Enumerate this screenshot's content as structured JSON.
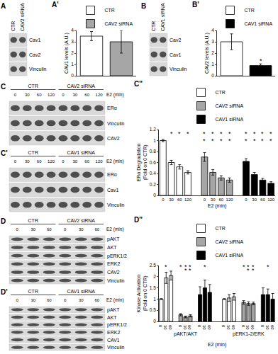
{
  "blots": [
    {
      "panel": "A",
      "lanes": [
        "CTR",
        "CAV2 siRNA"
      ],
      "rows": [
        "Cav1",
        "Cav2",
        "Vinculin"
      ]
    },
    {
      "panel": "B",
      "lanes": [
        "CTR",
        "CAV1 siRNA"
      ],
      "rows": [
        "Cav2",
        "Cav1",
        "Vinculin"
      ]
    },
    {
      "panel": "C",
      "groups": [
        "CTR",
        "CAV2 siRNA"
      ],
      "lanes": [
        "0",
        "30",
        "60",
        "120",
        "0",
        "30",
        "60",
        "120"
      ],
      "unit": "E2 (min)",
      "rows": [
        "ERα",
        "Vinculin",
        "CAV2"
      ]
    },
    {
      "panel": "C'",
      "groups": [
        "CTR",
        "CAV1 siRNA"
      ],
      "lanes": [
        "0",
        "30",
        "60",
        "120",
        "0",
        "30",
        "60",
        "120"
      ],
      "unit": "E2 (min)",
      "rows": [
        "ERα",
        "Cav1",
        "Vinculin"
      ]
    },
    {
      "panel": "D",
      "groups": [
        "CTR",
        "CAV2 siRNA"
      ],
      "lanes": [
        "0",
        "30",
        "60",
        "0",
        "30",
        "60"
      ],
      "unit": "E2 (min)",
      "rows": [
        "pAKT",
        "AKT",
        "pERK1/2",
        "ERK2",
        "CAV2",
        "Vinculin"
      ]
    },
    {
      "panel": "D'",
      "groups": [
        "CTR",
        "CAV1 siRNA"
      ],
      "lanes": [
        "0",
        "30",
        "60",
        "0",
        "30",
        "60"
      ],
      "unit": "E2 (min)",
      "rows": [
        "pAKT",
        "AKT",
        "pERK1/2",
        "ERK2",
        "CAV1",
        "Vinculin"
      ]
    }
  ],
  "chart_data": [
    {
      "panel": "A'",
      "type": "bar",
      "ylabel": "CAV1 levels (A.U.)",
      "categories": [
        null,
        null
      ],
      "series": [
        {
          "name": "CTR",
          "color": "#ffffff",
          "values": [
            3.5,
            null
          ],
          "errors": [
            0.4,
            null
          ]
        },
        {
          "name": "CAV2 siRNA",
          "color": "#a6a6a6",
          "values": [
            null,
            3.0
          ],
          "errors": [
            null,
            1.0
          ]
        }
      ],
      "ylim": [
        0,
        4
      ],
      "yticks": [
        0,
        1,
        2,
        3,
        4
      ],
      "legend": "top",
      "tick_labels": "y",
      "annotations": []
    },
    {
      "panel": "B'",
      "type": "bar",
      "ylabel": "CAV2 levels (A.U.)",
      "categories": [
        null,
        null
      ],
      "series": [
        {
          "name": "CTR",
          "color": "#ffffff",
          "values": [
            3.0,
            null
          ],
          "errors": [
            0.7,
            null
          ]
        },
        {
          "name": "CAV1 siRNA",
          "color": "#000000",
          "values": [
            null,
            0.9
          ],
          "errors": [
            null,
            0.15
          ]
        }
      ],
      "ylim": [
        0,
        4
      ],
      "yticks": [
        0,
        1,
        2,
        3,
        4
      ],
      "legend": "top",
      "tick_labels": "y",
      "annotations": [
        {
          "index": 1,
          "y": 1.3,
          "text": "*"
        }
      ]
    },
    {
      "panel": "C''",
      "type": "bar",
      "ylabel": "ERα Degradation\n(Fold on 0 CTR)",
      "xlabel": "E2 (min)",
      "categories": [
        "0",
        "30",
        "60",
        "120",
        null,
        "0",
        "30",
        "60",
        "120",
        null,
        "0",
        "30",
        "60",
        "120"
      ],
      "series": [
        {
          "name": "CTR",
          "color": "#ffffff",
          "values": [
            1.0,
            0.6,
            0.52,
            0.42,
            null,
            null,
            null,
            null,
            null,
            null,
            null,
            null,
            null,
            null
          ],
          "errors": [
            0.02,
            0.04,
            0.04,
            0.03,
            null,
            null,
            null,
            null,
            null,
            null,
            null,
            null,
            null,
            null
          ]
        },
        {
          "name": "CAV2 siRNA",
          "color": "#a6a6a6",
          "values": [
            null,
            null,
            null,
            null,
            null,
            0.7,
            0.42,
            0.32,
            0.28,
            null,
            null,
            null,
            null,
            null
          ],
          "errors": [
            null,
            null,
            null,
            null,
            null,
            0.08,
            0.05,
            0.04,
            0.04,
            null,
            null,
            null,
            null,
            null
          ]
        },
        {
          "name": "CAV1 siRNA",
          "color": "#000000",
          "values": [
            null,
            null,
            null,
            null,
            null,
            null,
            null,
            null,
            null,
            null,
            0.62,
            0.38,
            0.28,
            0.22
          ],
          "errors": [
            null,
            null,
            null,
            null,
            null,
            null,
            null,
            null,
            null,
            null,
            0.05,
            0.04,
            0.03,
            0.03
          ]
        }
      ],
      "ylim": [
        0,
        1.2
      ],
      "yticks": [
        0,
        0.2,
        0.4,
        0.6,
        0.8,
        1,
        1.2
      ],
      "legend": "top",
      "annotations": [
        {
          "index": 1,
          "y": 1.12,
          "text": "*"
        },
        {
          "index": 2,
          "y": 1.12,
          "text": "*"
        },
        {
          "index": 3,
          "y": 1.12,
          "text": "*"
        },
        {
          "index": 5,
          "y": 1.12,
          "text": "*"
        },
        {
          "index": 6,
          "y": 1.12,
          "text": "*"
        },
        {
          "index": 7,
          "y": 1.12,
          "text": "*"
        },
        {
          "index": 8,
          "y": 1.12,
          "text": "*"
        },
        {
          "index": 10,
          "y": 1.12,
          "text": "*"
        },
        {
          "index": 11,
          "y": 1.12,
          "text": "*"
        },
        {
          "index": 12,
          "y": 1.12,
          "text": "*"
        },
        {
          "index": 13,
          "y": 1.12,
          "text": "*"
        },
        {
          "index": 5,
          "y": 1.0,
          "text": "*"
        },
        {
          "index": 6,
          "y": 1.0,
          "text": "*"
        },
        {
          "index": 7,
          "y": 1.0,
          "text": "*"
        },
        {
          "index": 8,
          "y": 1.0,
          "text": "*"
        },
        {
          "index": 10,
          "y": 1.0,
          "text": "*"
        },
        {
          "index": 11,
          "y": 1.0,
          "text": "*"
        },
        {
          "index": 12,
          "y": 1.0,
          "text": "*"
        },
        {
          "index": 13,
          "y": 1.0,
          "text": "*"
        }
      ]
    },
    {
      "panel": "D''",
      "type": "bar",
      "ylabel": "Kinase Activation\n(Fold on 0 CTR)",
      "xlabel": "E2 (min)",
      "categories": [
        "0",
        "30",
        "60",
        null,
        "0",
        "30",
        "60",
        null,
        "0",
        "30",
        "60",
        null,
        null,
        "0",
        "30",
        "60",
        null,
        "0",
        "30",
        "60",
        null,
        "0",
        "30",
        "60"
      ],
      "groups": [
        {
          "label": "pAKT/AKT",
          "start": 0,
          "end": 10
        },
        {
          "label": "pERK1-2/ERK",
          "start": 13,
          "end": 23
        }
      ],
      "series": [
        {
          "name": "CTR",
          "color": "#ffffff",
          "values": [
            1.0,
            1.95,
            2.05,
            null,
            null,
            null,
            null,
            null,
            null,
            null,
            null,
            null,
            null,
            1.0,
            1.05,
            1.1,
            null,
            null,
            null,
            null,
            null,
            null,
            null,
            null
          ],
          "errors": [
            0.02,
            0.25,
            0.2,
            null,
            null,
            null,
            null,
            null,
            null,
            null,
            null,
            null,
            null,
            0.02,
            0.15,
            0.15,
            null,
            null,
            null,
            null,
            null,
            null,
            null,
            null
          ]
        },
        {
          "name": "CAV2 siRNA",
          "color": "#a6a6a6",
          "values": [
            null,
            null,
            null,
            null,
            0.3,
            0.2,
            0.25,
            null,
            null,
            null,
            null,
            null,
            null,
            null,
            null,
            null,
            null,
            0.85,
            0.8,
            0.8,
            null,
            null,
            null,
            null
          ],
          "errors": [
            null,
            null,
            null,
            null,
            0.05,
            0.04,
            0.05,
            null,
            null,
            null,
            null,
            null,
            null,
            null,
            null,
            null,
            null,
            0.08,
            0.08,
            0.06,
            null,
            null,
            null,
            null
          ]
        },
        {
          "name": "CAV1 siRNA",
          "color": "#000000",
          "values": [
            null,
            null,
            null,
            null,
            null,
            null,
            null,
            null,
            1.2,
            1.5,
            1.3,
            null,
            null,
            null,
            null,
            null,
            null,
            null,
            null,
            null,
            null,
            1.2,
            1.2,
            1.0
          ],
          "errors": [
            null,
            null,
            null,
            null,
            null,
            null,
            null,
            null,
            0.35,
            0.35,
            0.35,
            null,
            null,
            null,
            null,
            null,
            null,
            null,
            null,
            null,
            null,
            0.3,
            0.25,
            0.25
          ]
        }
      ],
      "ylim": [
        0,
        2.5
      ],
      "yticks": [
        0,
        0.5,
        1,
        1.5,
        2,
        2.5
      ],
      "legend": "top",
      "annotations": [
        {
          "index": 1,
          "y": 2.45,
          "text": "*"
        },
        {
          "index": 4,
          "y": 2.45,
          "text": "*"
        },
        {
          "index": 5,
          "y": 2.45,
          "text": "*"
        },
        {
          "index": 6,
          "y": 2.45,
          "text": "*"
        },
        {
          "index": 9,
          "y": 2.45,
          "text": "*"
        },
        {
          "index": 17,
          "y": 2.45,
          "text": "*"
        },
        {
          "index": 18,
          "y": 2.45,
          "text": "*"
        },
        {
          "index": 19,
          "y": 2.45,
          "text": "*"
        },
        {
          "index": 22,
          "y": 2.45,
          "text": "*"
        },
        {
          "index": 5,
          "y": 2.28,
          "text": "*"
        },
        {
          "index": 6,
          "y": 2.28,
          "text": "*"
        },
        {
          "index": 18,
          "y": 2.28,
          "text": "*"
        },
        {
          "index": 19,
          "y": 2.28,
          "text": "*"
        }
      ]
    }
  ]
}
